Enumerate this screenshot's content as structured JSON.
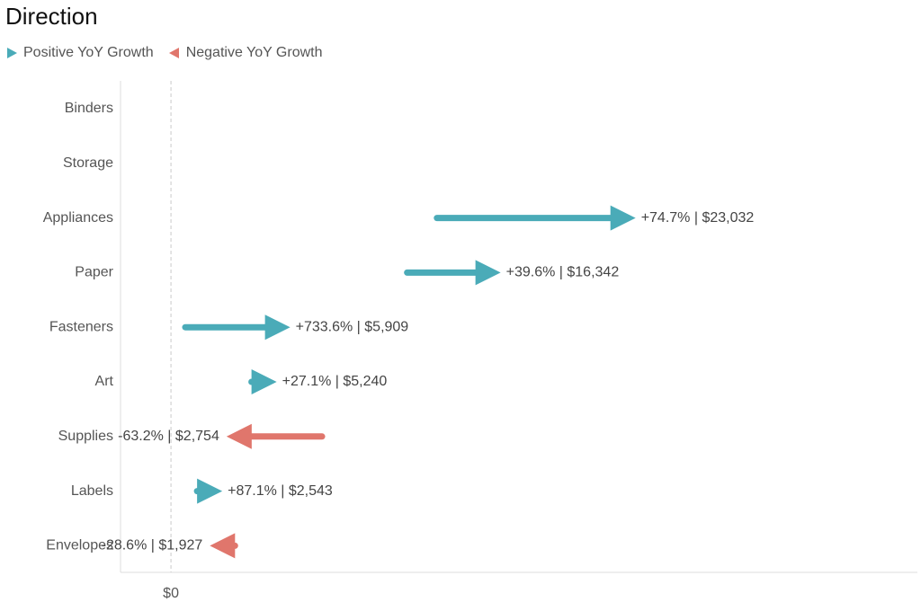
{
  "title": "Direction",
  "legend": [
    {
      "label": "Positive YoY Growth",
      "color": "#4AABB8",
      "direction": "right",
      "icon": "triangle-right-icon"
    },
    {
      "label": "Negative YoY Growth",
      "color": "#E0766C",
      "direction": "left",
      "icon": "triangle-left-icon"
    }
  ],
  "chart_data": {
    "type": "bar",
    "title": "Direction",
    "xlabel": "",
    "ylabel": "",
    "x_tick_labels": [
      {
        "value": 0,
        "label": "$0"
      }
    ],
    "xlim": [
      -2500,
      37000
    ],
    "grid": false,
    "legend_position": "top-left",
    "categories": [
      "Binders",
      "Storage",
      "Appliances",
      "Paper",
      "Fasteners",
      "Art",
      "Supplies",
      "Labels",
      "Envelopes"
    ],
    "series": [
      {
        "name": "Positive YoY Growth",
        "color": "#4AABB8",
        "points": [
          {
            "category": "Appliances",
            "start": 13185,
            "end": 23032,
            "label": "+74.7% | $23,032"
          },
          {
            "category": "Paper",
            "start": 11706,
            "end": 16342,
            "label": "+39.6% | $16,342"
          },
          {
            "category": "Fasteners",
            "start": 709,
            "end": 5909,
            "label": "+733.6% | $5,909"
          },
          {
            "category": "Art",
            "start": 4123,
            "end": 5240,
            "label": "+27.1% | $5,240"
          },
          {
            "category": "Labels",
            "start": 1359,
            "end": 2543,
            "label": "+87.1% | $2,543"
          }
        ]
      },
      {
        "name": "Negative YoY Growth",
        "color": "#E0766C",
        "points": [
          {
            "category": "Supplies",
            "start": 7489,
            "end": 2754,
            "label": "-63.2% | $2,754"
          },
          {
            "category": "Envelopes",
            "start": 2699,
            "end": 1927,
            "label": "-28.6% | $1,927"
          }
        ]
      }
    ]
  }
}
